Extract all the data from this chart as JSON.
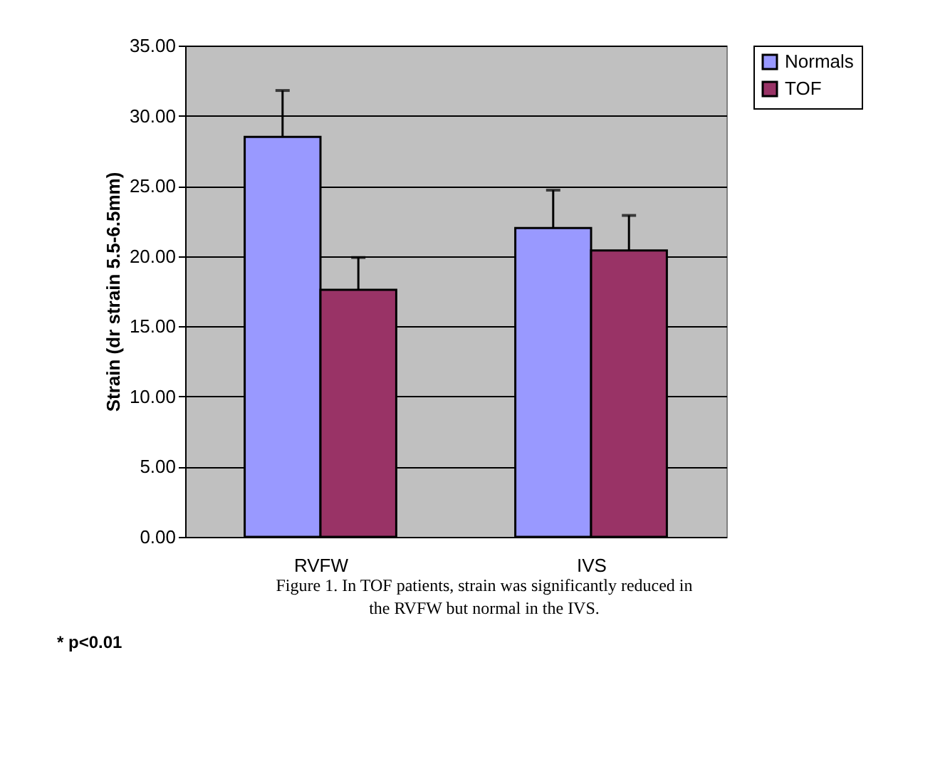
{
  "chart_data": {
    "type": "bar",
    "ylabel": "Strain (dr strain 5.5-6.5mm)",
    "categories": [
      "RVFW",
      "IVS"
    ],
    "series": [
      {
        "name": "Normals",
        "color": "#9999ff",
        "values": [
          28.5,
          22.0
        ],
        "errors": [
          [
            28.5,
            31.8
          ],
          [
            22.0,
            24.7
          ]
        ]
      },
      {
        "name": "TOF",
        "color": "#993366",
        "values": [
          17.6,
          20.4
        ],
        "errors": [
          [
            17.6,
            19.9
          ],
          [
            20.4,
            22.9
          ]
        ]
      }
    ],
    "ylim": [
      0,
      35
    ],
    "yticks": [
      {
        "value": 0,
        "label": "0.00"
      },
      {
        "value": 5,
        "label": "5.00"
      },
      {
        "value": 10,
        "label": "10.00"
      },
      {
        "value": 15,
        "label": "15.00"
      },
      {
        "value": 20,
        "label": "20.00"
      },
      {
        "value": 25,
        "label": "25.00"
      },
      {
        "value": 30,
        "label": "30.00"
      },
      {
        "value": 35,
        "label": "35.00"
      }
    ],
    "grid": "y",
    "legend": "right",
    "annotations": [
      "Figure 1. In TOF patients, strain was significantly reduced in the RVFW but normal in the IVS.",
      "* p<0.01"
    ]
  }
}
